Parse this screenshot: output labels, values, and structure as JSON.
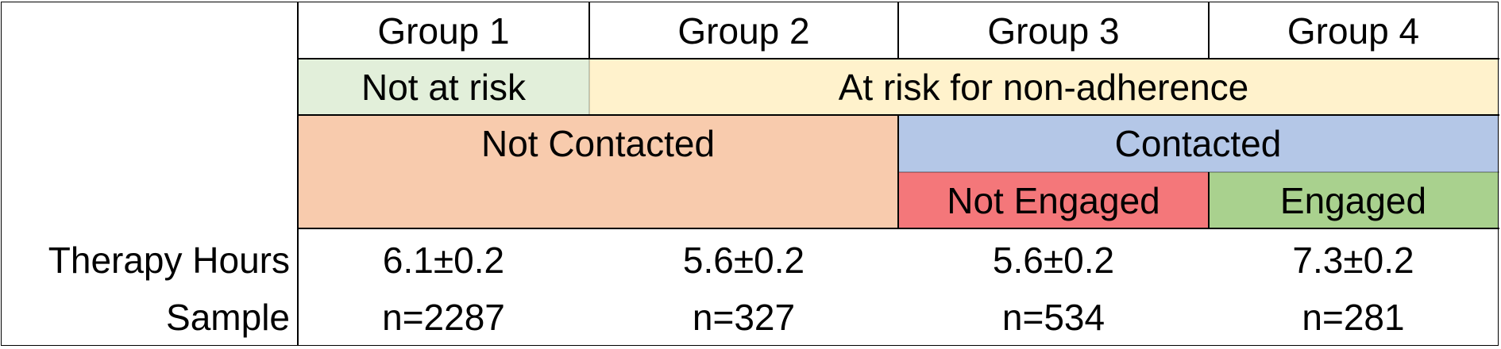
{
  "chart_data": {
    "type": "table",
    "groups": [
      "Group 1",
      "Group 2",
      "Group 3",
      "Group 4"
    ],
    "risk": {
      "not_at_risk": "Not at risk",
      "at_risk": "At risk for non-adherence"
    },
    "contact": {
      "not_contacted": "Not Contacted",
      "contacted": "Contacted"
    },
    "engagement": {
      "not_engaged": "Not Engaged",
      "engaged": "Engaged"
    },
    "row_labels": {
      "therapy_hours": "Therapy Hours",
      "sample": "Sample"
    },
    "therapy_hours": [
      "6.1±0.2",
      "5.6±0.2",
      "5.6±0.2",
      "7.3±0.2"
    ],
    "sample": [
      "n=2287",
      "n=327",
      "n=534",
      "n=281"
    ]
  },
  "colors": {
    "not_at_risk": "#e2efda",
    "at_risk": "#fff2cc",
    "not_contacted": "#f8cbad",
    "contacted": "#b4c7e7",
    "not_engaged": "#f4777a",
    "engaged": "#a9d18e"
  }
}
